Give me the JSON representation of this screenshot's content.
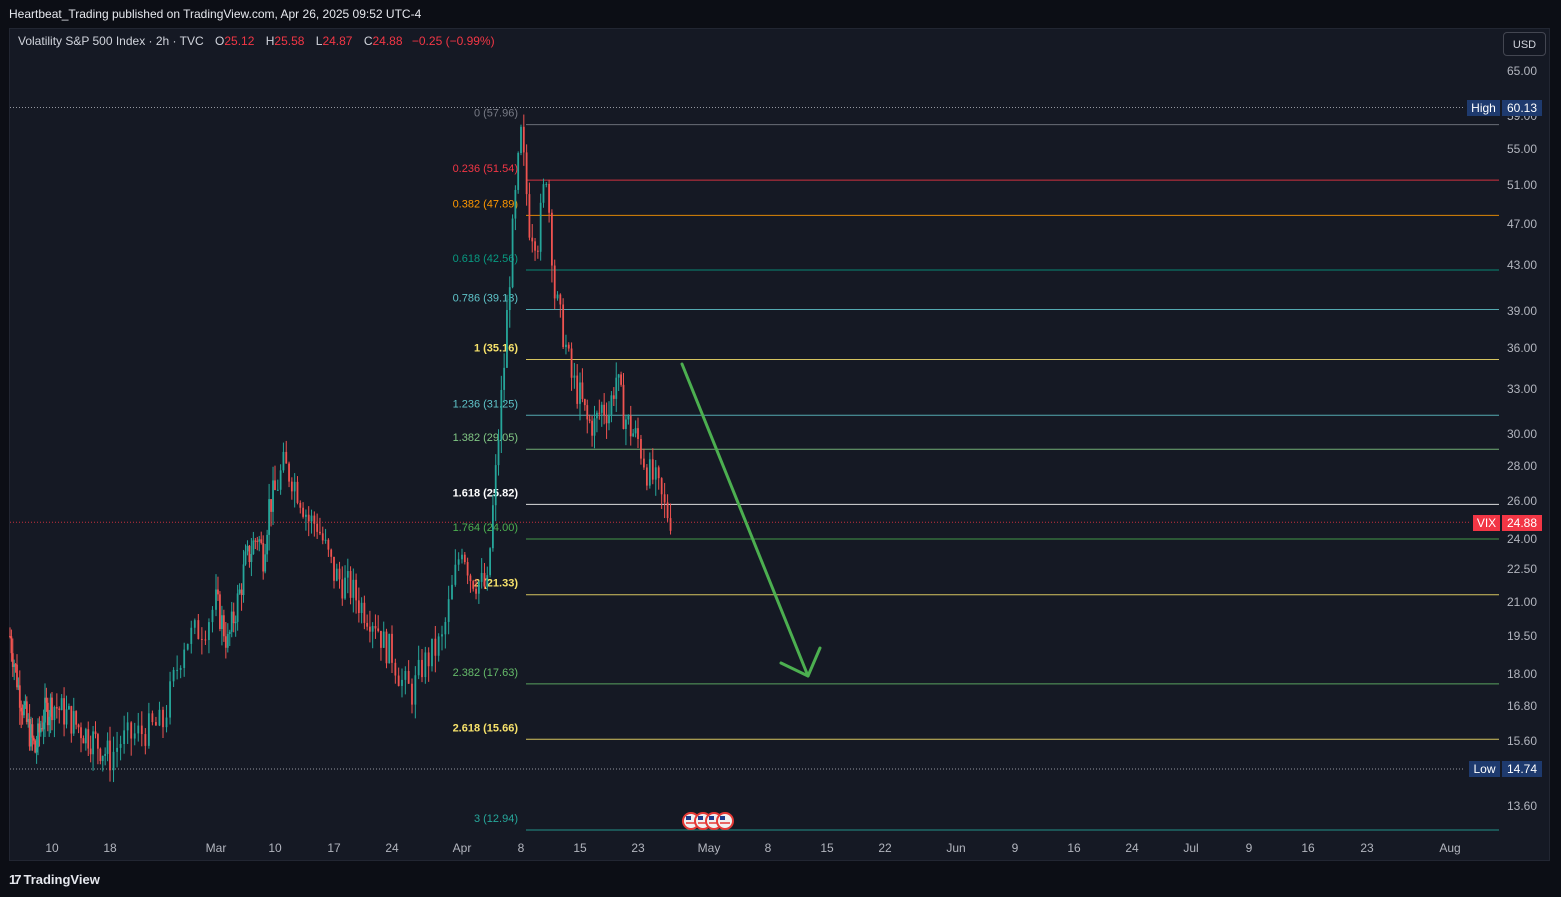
{
  "header": {
    "publisher": "Heartbeat_Trading published on TradingView.com, Apr 26, 2025 09:52 UTC-4"
  },
  "legend": {
    "symbol": "Volatility S&P 500 Index · 2h · TVC",
    "open_label": "O",
    "open": "25.12",
    "high_label": "H",
    "high": "25.58",
    "low_label": "L",
    "low": "24.87",
    "close_label": "C",
    "close": "24.88",
    "change": "−0.25 (−0.99%)"
  },
  "currency_button": "USD",
  "brand": {
    "logo": "17",
    "name": "TradingView"
  },
  "colors": {
    "background": "#151924",
    "up": "#26a69a",
    "down": "#ef5350",
    "last_price": "#f23645",
    "arrow": "#4caf50",
    "badge": "#1e3a6e"
  },
  "chart_data": {
    "type": "candlestick",
    "symbol": "VIX",
    "timeframe": "2h",
    "y_ticks": [
      65.0,
      59.0,
      55.0,
      51.0,
      47.0,
      43.0,
      39.0,
      36.0,
      33.0,
      30.0,
      28.0,
      26.0,
      24.0,
      22.5,
      21.0,
      19.5,
      18.0,
      16.8,
      15.6,
      13.6
    ],
    "x_ticks": [
      {
        "label": "10",
        "d": 10
      },
      {
        "label": "18",
        "d": 18
      },
      {
        "label": "Mar",
        "d": 28
      },
      {
        "label": "10",
        "d": 38
      },
      {
        "label": "17",
        "d": 45
      },
      {
        "label": "24",
        "d": 52
      },
      {
        "label": "Apr",
        "d": 59
      },
      {
        "label": "8",
        "d": 66
      },
      {
        "label": "15",
        "d": 73
      },
      {
        "label": "23",
        "d": 81
      },
      {
        "label": "May",
        "d": 89
      },
      {
        "label": "8",
        "d": 96
      },
      {
        "label": "15",
        "d": 103
      },
      {
        "label": "22",
        "d": 110
      },
      {
        "label": "Jun",
        "d": 119
      },
      {
        "label": "9",
        "d": 127
      },
      {
        "label": "16",
        "d": 134
      },
      {
        "label": "24",
        "d": 141
      },
      {
        "label": "Jul",
        "d": 147
      },
      {
        "label": "9",
        "d": 155
      },
      {
        "label": "16",
        "d": 162
      },
      {
        "label": "23",
        "d": 169
      },
      {
        "label": "Aug",
        "d": 178
      }
    ],
    "high_marker": {
      "label": "High",
      "value": "60.13"
    },
    "low_marker": {
      "label": "Low",
      "value": "14.74"
    },
    "last_price": {
      "label": "VIX",
      "value": "24.88"
    },
    "fib_levels": [
      {
        "label": "0 (57.96)",
        "price": 57.96,
        "color": "#787b86"
      },
      {
        "label": "0.236 (51.54)",
        "price": 51.54,
        "color": "#f23645"
      },
      {
        "label": "0.382 (47.89)",
        "price": 47.89,
        "color": "#ff9800"
      },
      {
        "label": "0.618 (42.56)",
        "price": 42.56,
        "color": "#089981"
      },
      {
        "label": "0.786 (39.13)",
        "price": 39.13,
        "color": "#5fc3c9"
      },
      {
        "label": "1 (35.16)",
        "price": 35.16,
        "color": "#f7e26b"
      },
      {
        "label": "1.236 (31.25)",
        "price": 31.25,
        "color": "#5fc3c9"
      },
      {
        "label": "1.382 (29.05)",
        "price": 29.05,
        "color": "#81c784"
      },
      {
        "label": "1.618 (25.82)",
        "price": 25.82,
        "color": "#ffffff"
      },
      {
        "label": "1.764 (24.00)",
        "price": 24.0,
        "color": "#4caf50"
      },
      {
        "label": "2 (21.33)",
        "price": 21.33,
        "color": "#f7e26b"
      },
      {
        "label": "2.382 (17.63)",
        "price": 17.63,
        "color": "#66bb6a"
      },
      {
        "label": "2.618 (15.66)",
        "price": 15.66,
        "color": "#f7e26b"
      },
      {
        "label": "3 (12.94)",
        "price": 12.94,
        "color": "#26a69a"
      }
    ],
    "price_path": [
      {
        "d": 0,
        "p": 19.5
      },
      {
        "d": 2,
        "p": 17.5
      },
      {
        "d": 4,
        "p": 16.2
      },
      {
        "d": 6,
        "p": 15.3
      },
      {
        "d": 8,
        "p": 16.5
      },
      {
        "d": 10,
        "p": 16.9
      },
      {
        "d": 12,
        "p": 16.5
      },
      {
        "d": 14,
        "p": 16.0
      },
      {
        "d": 16,
        "p": 15.6
      },
      {
        "d": 18,
        "p": 15.1
      },
      {
        "d": 19,
        "p": 15.6
      },
      {
        "d": 21,
        "p": 15.9
      },
      {
        "d": 23,
        "p": 16.2
      },
      {
        "d": 25,
        "p": 19.3
      },
      {
        "d": 27,
        "p": 20.0
      },
      {
        "d": 28,
        "p": 21.0
      },
      {
        "d": 30,
        "p": 19.2
      },
      {
        "d": 32,
        "p": 21.4
      },
      {
        "d": 33,
        "p": 22.8
      },
      {
        "d": 35,
        "p": 24.2
      },
      {
        "d": 36,
        "p": 23.2
      },
      {
        "d": 37,
        "p": 25.8
      },
      {
        "d": 38,
        "p": 26.5
      },
      {
        "d": 39,
        "p": 28.0
      },
      {
        "d": 40,
        "p": 27.4
      },
      {
        "d": 41,
        "p": 26.3
      },
      {
        "d": 42,
        "p": 25.0
      },
      {
        "d": 43,
        "p": 24.8
      },
      {
        "d": 44,
        "p": 23.5
      },
      {
        "d": 45,
        "p": 22.3
      },
      {
        "d": 46,
        "p": 21.9
      },
      {
        "d": 47,
        "p": 21.6
      },
      {
        "d": 48,
        "p": 21.0
      },
      {
        "d": 49,
        "p": 20.5
      },
      {
        "d": 50,
        "p": 20.2
      },
      {
        "d": 51,
        "p": 19.2
      },
      {
        "d": 52,
        "p": 18.8
      },
      {
        "d": 53,
        "p": 17.7
      },
      {
        "d": 54,
        "p": 17.3
      },
      {
        "d": 55,
        "p": 18.3
      },
      {
        "d": 56,
        "p": 18.8
      },
      {
        "d": 57,
        "p": 19.3
      },
      {
        "d": 58,
        "p": 21.5
      },
      {
        "d": 59,
        "p": 23.8
      },
      {
        "d": 60,
        "p": 22.2
      },
      {
        "d": 61,
        "p": 21.9
      },
      {
        "d": 62,
        "p": 21.6
      },
      {
        "d": 63,
        "p": 27.5
      },
      {
        "d": 64,
        "p": 34.8
      },
      {
        "d": 65,
        "p": 46.0
      },
      {
        "d": 66,
        "p": 56.5
      },
      {
        "d": 67,
        "p": 47.0
      },
      {
        "d": 68,
        "p": 45.5
      },
      {
        "d": 69,
        "p": 52.5
      },
      {
        "d": 70,
        "p": 40.5
      },
      {
        "d": 71,
        "p": 37.2
      },
      {
        "d": 72,
        "p": 33.8
      },
      {
        "d": 73,
        "p": 32.5
      },
      {
        "d": 74,
        "p": 30.8
      },
      {
        "d": 75,
        "p": 30.6
      },
      {
        "d": 76,
        "p": 31.8
      },
      {
        "d": 77,
        "p": 31.5
      },
      {
        "d": 78,
        "p": 33.9
      },
      {
        "d": 79,
        "p": 31.4
      },
      {
        "d": 80,
        "p": 30.3
      },
      {
        "d": 81,
        "p": 29.6
      },
      {
        "d": 82,
        "p": 27.8
      },
      {
        "d": 83,
        "p": 27.0
      },
      {
        "d": 84,
        "p": 25.6
      },
      {
        "d": 85,
        "p": 24.9
      }
    ]
  }
}
